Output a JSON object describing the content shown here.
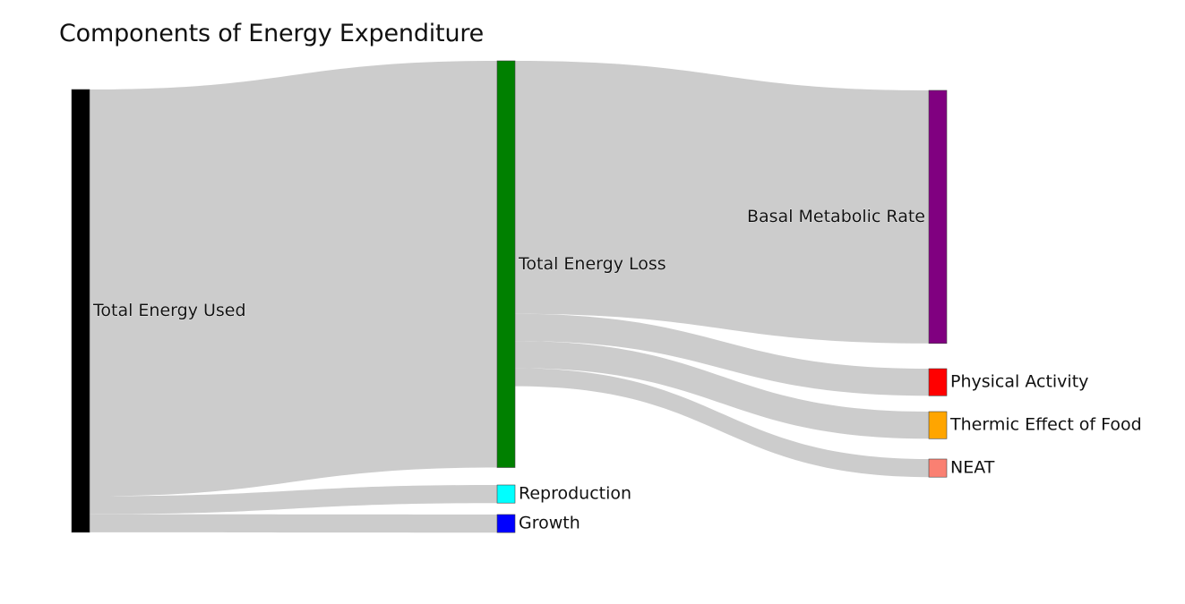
{
  "chart_data": {
    "type": "sankey",
    "title": "Components of Energy Expenditure",
    "link_color": "#cccccc",
    "nodes": [
      {
        "id": "used",
        "label": "Total Energy Used",
        "color": "#000000",
        "column": 0
      },
      {
        "id": "loss",
        "label": "Total Energy Loss",
        "color": "#008000",
        "column": 1
      },
      {
        "id": "repro",
        "label": "Reproduction",
        "color": "#00ffff",
        "column": 1
      },
      {
        "id": "growth",
        "label": "Growth",
        "color": "#0000ff",
        "column": 1
      },
      {
        "id": "bmr",
        "label": "Basal Metabolic Rate",
        "color": "#800080",
        "column": 2
      },
      {
        "id": "pa",
        "label": "Physical Activity",
        "color": "#ff0000",
        "column": 2
      },
      {
        "id": "tef",
        "label": "Thermic Effect of Food",
        "color": "#ffa500",
        "column": 2
      },
      {
        "id": "neat",
        "label": "NEAT",
        "color": "#fa8072",
        "column": 2
      }
    ],
    "links": [
      {
        "source": "used",
        "target": "loss",
        "value": 90
      },
      {
        "source": "used",
        "target": "repro",
        "value": 4
      },
      {
        "source": "used",
        "target": "growth",
        "value": 4
      },
      {
        "source": "loss",
        "target": "bmr",
        "value": 56
      },
      {
        "source": "loss",
        "target": "pa",
        "value": 6
      },
      {
        "source": "loss",
        "target": "tef",
        "value": 6
      },
      {
        "source": "loss",
        "target": "neat",
        "value": 4
      }
    ]
  }
}
